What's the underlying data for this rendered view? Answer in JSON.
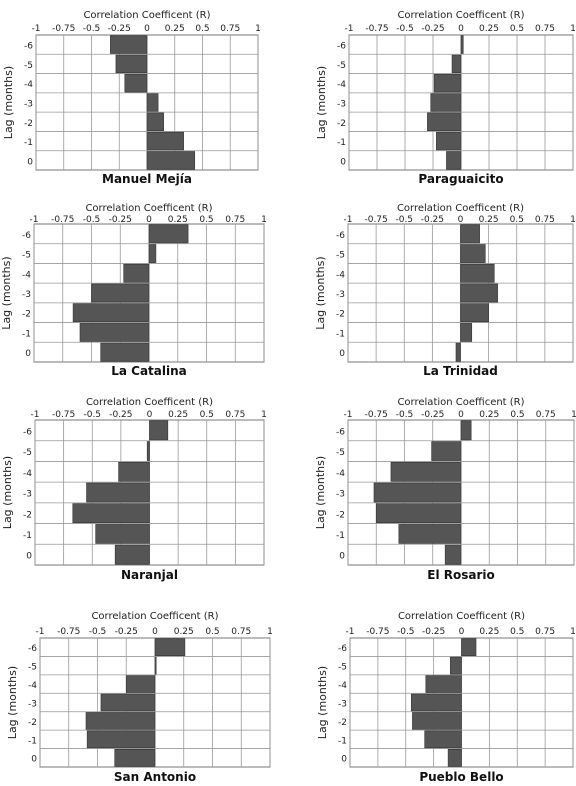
{
  "chart_data": [
    {
      "type": "bar",
      "orientation": "horizontal",
      "title": "Manuel Mejía",
      "xlabel": "Correlation Coefficent (R)",
      "ylabel": "Lag (months)",
      "xlim": [
        -1,
        1
      ],
      "x_ticks": [
        "-1",
        "-0.75",
        "-0.5",
        "-0.25",
        "0",
        "0.25",
        "0.5",
        "0.75",
        "1"
      ],
      "categories": [
        "-6",
        "-5",
        "-4",
        "-3",
        "-2",
        "-1",
        "0"
      ],
      "values": [
        -0.33,
        -0.28,
        -0.2,
        0.1,
        0.15,
        0.33,
        0.43
      ]
    },
    {
      "type": "bar",
      "orientation": "horizontal",
      "title": "Paraguaicito",
      "xlabel": "Correlation Coefficent (R)",
      "ylabel": "Lag (months)",
      "xlim": [
        -1,
        1
      ],
      "x_ticks": [
        "-1",
        "-0.75",
        "-0.5",
        "-0.25",
        "0",
        "0.25",
        "0.5",
        "0.75",
        "1"
      ],
      "categories": [
        "-6",
        "-5",
        "-4",
        "-3",
        "-2",
        "-1",
        "0"
      ],
      "values": [
        0.02,
        -0.08,
        -0.24,
        -0.27,
        -0.3,
        -0.22,
        -0.13
      ]
    },
    {
      "type": "bar",
      "orientation": "horizontal",
      "title": "La Catalina",
      "xlabel": "Correlation Coefficent (R)",
      "ylabel": "Lag (months)",
      "xlim": [
        -1,
        1
      ],
      "x_ticks": [
        "-1",
        "-0.75",
        "-0.5",
        "-0.25",
        "0",
        "0.25",
        "0.5",
        "0.75",
        "1"
      ],
      "categories": [
        "-6",
        "-5",
        "-4",
        "-3",
        "-2",
        "-1",
        "0"
      ],
      "values": [
        0.34,
        0.06,
        -0.22,
        -0.5,
        -0.66,
        -0.6,
        -0.42
      ]
    },
    {
      "type": "bar",
      "orientation": "horizontal",
      "title": "La Trinidad",
      "xlabel": "Correlation Coefficent (R)",
      "ylabel": "Lag (months)",
      "xlim": [
        -1,
        1
      ],
      "x_ticks": [
        "-1",
        "-0.75",
        "-0.5",
        "-0.25",
        "0",
        "0.25",
        "0.5",
        "0.75",
        "1"
      ],
      "categories": [
        "-6",
        "-5",
        "-4",
        "-3",
        "-2",
        "-1",
        "0"
      ],
      "values": [
        0.17,
        0.22,
        0.3,
        0.33,
        0.25,
        0.1,
        -0.04
      ]
    },
    {
      "type": "bar",
      "orientation": "horizontal",
      "title": "Naranjal",
      "xlabel": "Correlation Coefficent (R)",
      "ylabel": "Lag (months)",
      "xlim": [
        -1,
        1
      ],
      "x_ticks": [
        "-1",
        "-0.75",
        "-0.5",
        "-0.25",
        "0",
        "0.25",
        "0.5",
        "0.75",
        "1"
      ],
      "categories": [
        "-6",
        "-5",
        "-4",
        "-3",
        "-2",
        "-1",
        "0"
      ],
      "values": [
        0.16,
        -0.02,
        -0.27,
        -0.55,
        -0.67,
        -0.47,
        -0.3
      ]
    },
    {
      "type": "bar",
      "orientation": "horizontal",
      "title": "El Rosario",
      "xlabel": "Correlation Coefficent (R)",
      "ylabel": "Lag (months)",
      "xlim": [
        -1,
        1
      ],
      "x_ticks": [
        "-1",
        "-0.75",
        "-0.5",
        "-0.25",
        "0",
        "0.25",
        "0.5",
        "0.75",
        "1"
      ],
      "categories": [
        "-6",
        "-5",
        "-4",
        "-3",
        "-2",
        "-1",
        "0"
      ],
      "values": [
        0.09,
        -0.26,
        -0.62,
        -0.77,
        -0.75,
        -0.55,
        -0.14
      ]
    },
    {
      "type": "bar",
      "orientation": "horizontal",
      "title": "San Antonio",
      "xlabel": "Correlation Coefficent (R)",
      "ylabel": "Lag (months)",
      "xlim": [
        -1,
        1
      ],
      "x_ticks": [
        "-1",
        "-0.75",
        "-0.5",
        "-0.25",
        "0",
        "0.25",
        "0.5",
        "0.75",
        "1"
      ],
      "categories": [
        "-6",
        "-5",
        "-4",
        "-3",
        "-2",
        "-1",
        "0"
      ],
      "values": [
        0.26,
        0.01,
        -0.25,
        -0.47,
        -0.6,
        -0.59,
        -0.35
      ]
    },
    {
      "type": "bar",
      "orientation": "horizontal",
      "title": "Pueblo Bello",
      "xlabel": "Correlation Coefficent (R)",
      "ylabel": "Lag (months)",
      "xlim": [
        -1,
        1
      ],
      "x_ticks": [
        "-1",
        "-0.75",
        "-0.5",
        "-0.25",
        "0",
        "0.25",
        "0.5",
        "0.75",
        "1"
      ],
      "categories": [
        "-6",
        "-5",
        "-4",
        "-3",
        "-2",
        "-1",
        "0"
      ],
      "values": [
        0.13,
        -0.1,
        -0.32,
        -0.45,
        -0.44,
        -0.33,
        -0.12
      ]
    }
  ],
  "colors": {
    "bar": "#555555",
    "bar_stroke": "#333333",
    "grid": "#999999",
    "frame": "#777777"
  }
}
